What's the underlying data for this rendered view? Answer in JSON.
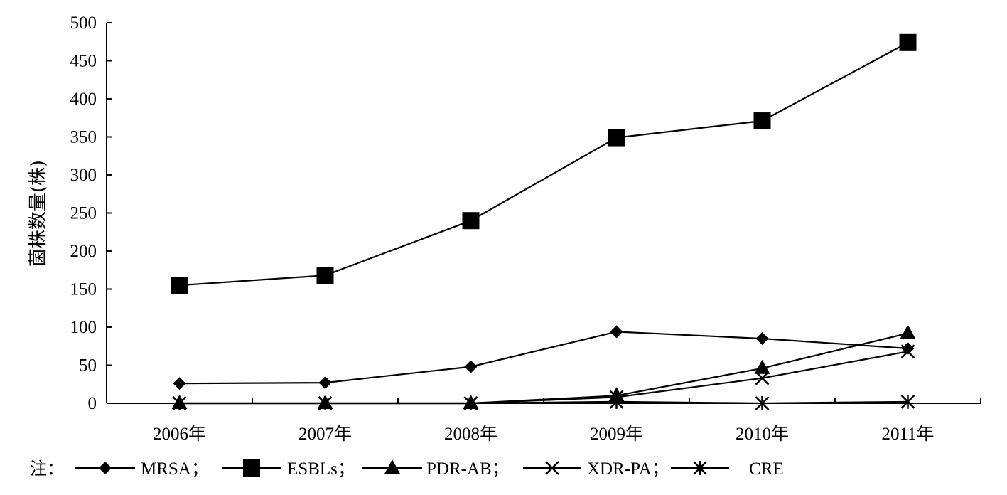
{
  "chart_data": {
    "type": "line",
    "title": "",
    "xlabel": "",
    "ylabel": "菌株数量(株)",
    "ylim": [
      0,
      500
    ],
    "yticks": [
      0,
      50,
      100,
      150,
      200,
      250,
      300,
      350,
      400,
      450,
      500
    ],
    "categories": [
      "2006年",
      "2007年",
      "2008年",
      "2009年",
      "2010年",
      "2011年"
    ],
    "grid": false,
    "legend_position": "bottom",
    "legend_prefix": "注：",
    "series": [
      {
        "name": "MRSA；",
        "marker": "diamond",
        "values": [
          26,
          27,
          48,
          94,
          85,
          72
        ]
      },
      {
        "name": "ESBLs；",
        "marker": "square",
        "values": [
          155,
          168,
          240,
          349,
          371,
          474
        ]
      },
      {
        "name": "PDR-AB；",
        "marker": "triangle",
        "values": [
          0,
          0,
          0,
          10,
          46,
          92
        ]
      },
      {
        "name": "XDR-PA；",
        "marker": "x",
        "values": [
          0,
          0,
          0,
          8,
          33,
          68
        ]
      },
      {
        "name": "CRE",
        "marker": "asterisk",
        "values": [
          0,
          0,
          0,
          2,
          0,
          2
        ]
      }
    ]
  }
}
